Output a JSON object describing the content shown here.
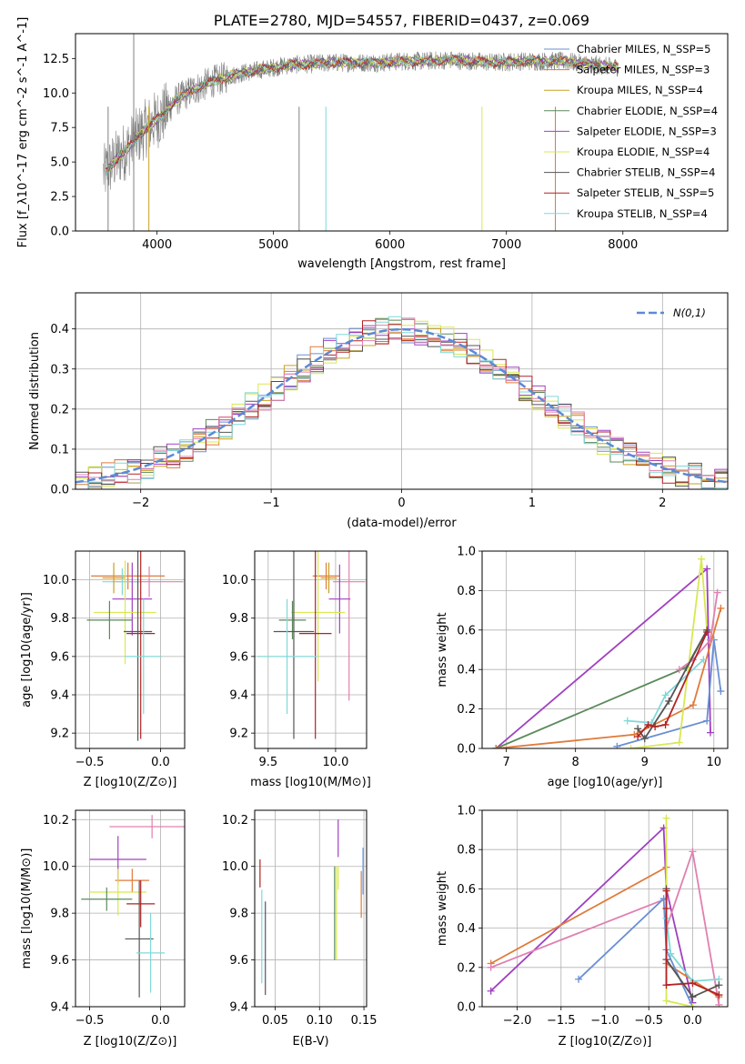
{
  "colors": {
    "chab_miles": "#6a8fd4",
    "salp_miles": "#e07a3a",
    "krou_miles": "#c9a020",
    "chab_elodie": "#5a8a5a",
    "salp_elodie": "#a040c0",
    "krou_elodie": "#d8e850",
    "chab_stelib": "#555555",
    "salp_stelib": "#b22222",
    "krou_stelib": "#80d8d8",
    "pink": "#e080b0",
    "gaussian": "#5b8ad6",
    "spectrum": "#808080"
  },
  "chart_data": [
    {
      "id": "spectrum",
      "type": "line",
      "title": "PLATE=2780, MJD=54557, FIBERID=0437, z=0.069",
      "xlabel": "wavelength [Angstrom, rest frame]",
      "ylabel": "Flux [f_λ10^-17 erg cm^-2 s^-1 A^-1]",
      "xlim": [
        3300,
        8900
      ],
      "ylim": [
        0,
        14.3
      ],
      "xticks": [
        4000,
        5000,
        6000,
        7000,
        8000
      ],
      "yticks": [
        0.0,
        2.5,
        5.0,
        7.5,
        10.0,
        12.5
      ],
      "spectrum_anchors": {
        "x": [
          3550,
          3650,
          3750,
          3850,
          3950,
          4050,
          4150,
          4300,
          4500,
          4700,
          4900,
          5100,
          5300,
          5500,
          5700,
          5900,
          6100,
          6300,
          6500,
          6700,
          6900,
          7100,
          7300,
          7500,
          7700,
          7900
        ],
        "y": [
          4.2,
          5.2,
          6.0,
          7.0,
          7.8,
          8.4,
          9.4,
          10.2,
          10.9,
          11.4,
          11.7,
          12.0,
          12.1,
          12.2,
          12.2,
          12.2,
          12.3,
          12.3,
          12.4,
          12.3,
          12.2,
          12.3,
          12.3,
          12.3,
          12.1,
          11.9
        ]
      },
      "absorption_lines": [
        3580,
        3800,
        3930,
        5220,
        5450,
        6790,
        7420
      ],
      "legend": [
        {
          "name": "Chabrier MILES, N_SSP=5",
          "color_key": "chab_miles"
        },
        {
          "name": "Salpeter MILES, N_SSP=3",
          "color_key": "salp_miles"
        },
        {
          "name": "Kroupa MILES, N_SSP=4",
          "color_key": "krou_miles"
        },
        {
          "name": "Chabrier ELODIE, N_SSP=4",
          "color_key": "chab_elodie"
        },
        {
          "name": "Salpeter ELODIE, N_SSP=3",
          "color_key": "salp_elodie"
        },
        {
          "name": "Kroupa ELODIE, N_SSP=4",
          "color_key": "krou_elodie"
        },
        {
          "name": "Chabrier STELIB, N_SSP=4",
          "color_key": "chab_stelib"
        },
        {
          "name": "Salpeter STELIB, N_SSP=5",
          "color_key": "salp_stelib"
        },
        {
          "name": "Kroupa STELIB, N_SSP=4",
          "color_key": "krou_stelib"
        }
      ]
    },
    {
      "id": "residuals",
      "type": "line",
      "xlabel": "(data-model)/error",
      "ylabel": "Normed distribution",
      "xlim": [
        -2.5,
        2.5
      ],
      "ylim": [
        0,
        0.49
      ],
      "xticks": [
        -2,
        -1,
        0,
        1,
        2
      ],
      "yticks": [
        0.0,
        0.1,
        0.2,
        0.3,
        0.4
      ],
      "legend": "N(0,1)",
      "gaussian": {
        "mean": 0,
        "sigma": 1
      },
      "histogram_bin_width": 0.1,
      "series_color_keys": [
        "chab_miles",
        "salp_miles",
        "krou_miles",
        "chab_elodie",
        "salp_elodie",
        "krou_elodie",
        "chab_stelib",
        "salp_stelib",
        "krou_stelib",
        "pink"
      ]
    },
    {
      "id": "age_vs_Z",
      "type": "scatter",
      "xlabel": "Z [log10(Z/Z⊙)]",
      "ylabel": "age [log10(age/yr)]",
      "xlim": [
        -0.6,
        0.17
      ],
      "ylim": [
        9.12,
        10.15
      ],
      "xticks": [
        -0.5,
        0.0
      ],
      "yticks": [
        9.2,
        9.4,
        9.6,
        9.8,
        10.0
      ],
      "points": [
        {
          "color_key": "salp_miles",
          "x": -0.23,
          "y": 10.02,
          "xerr": 0.26,
          "yerr": 0.07
        },
        {
          "color_key": "pink",
          "x": -0.08,
          "y": 9.99,
          "xerr": 0.24,
          "yerr": 0.08
        },
        {
          "color_key": "krou_stelib",
          "x": -0.27,
          "y": 9.99,
          "xerr": 0.14,
          "yerr": 0.07
        },
        {
          "color_key": "krou_miles",
          "x": -0.33,
          "y": 10.01,
          "xerr": 0.08,
          "yerr": 0.08
        },
        {
          "color_key": "salp_elodie",
          "x": -0.2,
          "y": 9.9,
          "xerr": 0.14,
          "yerr": 0.19
        },
        {
          "color_key": "krou_elodie",
          "x": -0.25,
          "y": 9.83,
          "xerr": 0.22,
          "yerr": 0.27
        },
        {
          "color_key": "chab_elodie",
          "x": -0.36,
          "y": 9.79,
          "xerr": 0.16,
          "yerr": 0.1
        },
        {
          "color_key": "salp_stelib",
          "x": -0.14,
          "y": 9.72,
          "xerr": 0.1,
          "yerr": 0.55
        },
        {
          "color_key": "chab_stelib",
          "x": -0.16,
          "y": 9.73,
          "xerr": 0.1,
          "yerr": 0.57
        },
        {
          "color_key": "krou_stelib",
          "x": -0.12,
          "y": 9.6,
          "xerr": 0.13,
          "yerr": 0.3
        }
      ]
    },
    {
      "id": "age_vs_mass",
      "type": "scatter",
      "xlabel": "mass [log10(M/M⊙)]",
      "ylabel": "",
      "xlim": [
        9.4,
        10.23
      ],
      "ylim": [
        9.12,
        10.15
      ],
      "xticks": [
        9.5,
        10.0
      ],
      "yticks": [
        9.2,
        9.4,
        9.6,
        9.8,
        10.0
      ],
      "points": [
        {
          "color_key": "salp_miles",
          "x": 9.93,
          "y": 10.02,
          "xerr": 0.1,
          "yerr": 0.07
        },
        {
          "color_key": "pink",
          "x": 10.1,
          "y": 9.99,
          "xerr": 0.12,
          "yerr": 0.62
        },
        {
          "color_key": "krou_miles",
          "x": 9.95,
          "y": 10.01,
          "xerr": 0.06,
          "yerr": 0.08
        },
        {
          "color_key": "salp_elodie",
          "x": 10.03,
          "y": 9.9,
          "xerr": 0.08,
          "yerr": 0.18
        },
        {
          "color_key": "krou_elodie",
          "x": 9.87,
          "y": 9.83,
          "xerr": 0.2,
          "yerr": 0.36
        },
        {
          "color_key": "chab_elodie",
          "x": 9.68,
          "y": 9.79,
          "xerr": 0.1,
          "yerr": 0.1
        },
        {
          "color_key": "chab_stelib",
          "x": 9.69,
          "y": 9.73,
          "xerr": 0.15,
          "yerr": 0.56
        },
        {
          "color_key": "salp_stelib",
          "x": 9.85,
          "y": 9.72,
          "xerr": 0.12,
          "yerr": 0.55
        },
        {
          "color_key": "krou_stelib",
          "x": 9.64,
          "y": 9.6,
          "xerr": 0.22,
          "yerr": 0.3
        }
      ]
    },
    {
      "id": "weight_vs_age",
      "type": "line",
      "xlabel": "age [log10(age/yr)]",
      "ylabel": "mass weight",
      "xlim": [
        6.65,
        10.2
      ],
      "ylim": [
        0,
        1.0
      ],
      "xticks": [
        7,
        8,
        9,
        10
      ],
      "yticks": [
        0.0,
        0.2,
        0.4,
        0.6,
        0.8,
        1.0
      ],
      "series": [
        {
          "color_key": "salp_elodie",
          "x": [
            6.85,
            9.9,
            9.95
          ],
          "y": [
            0.0,
            0.91,
            0.08
          ]
        },
        {
          "color_key": "chab_elodie",
          "x": [
            6.85,
            9.6,
            9.9
          ],
          "y": [
            0.0,
            0.41,
            0.6
          ]
        },
        {
          "color_key": "salp_miles",
          "x": [
            6.85,
            8.85,
            9.7,
            10.1
          ],
          "y": [
            0.0,
            0.07,
            0.22,
            0.71
          ]
        },
        {
          "color_key": "chab_miles",
          "x": [
            8.6,
            9.9,
            10.0,
            10.1
          ],
          "y": [
            0.01,
            0.14,
            0.55,
            0.29
          ]
        },
        {
          "color_key": "krou_elodie",
          "x": [
            8.8,
            9.5,
            9.82,
            9.9
          ],
          "y": [
            0.0,
            0.03,
            0.96,
            0.6
          ]
        },
        {
          "color_key": "pink",
          "x": [
            9.5,
            9.7,
            9.95,
            10.05
          ],
          "y": [
            0.4,
            0.45,
            0.55,
            0.79
          ]
        },
        {
          "color_key": "krou_stelib",
          "x": [
            8.75,
            9.1,
            9.3,
            9.85
          ],
          "y": [
            0.14,
            0.13,
            0.27,
            0.45
          ]
        },
        {
          "color_key": "chab_stelib",
          "x": [
            8.9,
            9.0,
            9.35,
            9.9
          ],
          "y": [
            0.1,
            0.05,
            0.24,
            0.6
          ]
        },
        {
          "color_key": "salp_stelib",
          "x": [
            8.9,
            9.05,
            9.15,
            9.3,
            9.9
          ],
          "y": [
            0.06,
            0.12,
            0.11,
            0.12,
            0.59
          ]
        }
      ]
    },
    {
      "id": "mass_vs_Z",
      "type": "scatter",
      "xlabel": "Z [log10(Z/Z⊙)]",
      "ylabel": "mass [log10(M/M⊙)]",
      "xlim": [
        -0.6,
        0.17
      ],
      "ylim": [
        9.4,
        10.24
      ],
      "xticks": [
        -0.5,
        0.0
      ],
      "yticks": [
        9.4,
        9.6,
        9.8,
        10.0,
        10.2
      ],
      "points": [
        {
          "color_key": "pink",
          "x": -0.06,
          "y": 10.17,
          "xerr": 0.3,
          "yerr": 0.05
        },
        {
          "color_key": "salp_elodie",
          "x": -0.3,
          "y": 10.03,
          "xerr": 0.2,
          "yerr": 0.1
        },
        {
          "color_key": "salp_miles",
          "x": -0.2,
          "y": 9.94,
          "xerr": 0.12,
          "yerr": 0.05
        },
        {
          "color_key": "krou_elodie",
          "x": -0.3,
          "y": 9.89,
          "xerr": 0.2,
          "yerr": 0.1
        },
        {
          "color_key": "chab_elodie",
          "x": -0.38,
          "y": 9.86,
          "xerr": 0.18,
          "yerr": 0.05
        },
        {
          "color_key": "salp_stelib",
          "x": -0.14,
          "y": 9.84,
          "xerr": 0.1,
          "yerr": 0.1
        },
        {
          "color_key": "chab_stelib",
          "x": -0.15,
          "y": 9.69,
          "xerr": 0.1,
          "yerr": 0.25
        },
        {
          "color_key": "krou_stelib",
          "x": -0.07,
          "y": 9.63,
          "xerr": 0.1,
          "yerr": 0.17
        }
      ]
    },
    {
      "id": "mass_vs_ebv",
      "type": "scatter",
      "xlabel": "E(B-V)",
      "ylabel": "",
      "xlim": [
        0.027,
        0.153
      ],
      "ylim": [
        9.4,
        10.24
      ],
      "xticks": [
        0.05,
        0.1,
        0.15
      ],
      "yticks": [
        9.4,
        9.6,
        9.8,
        10.0,
        10.2
      ],
      "points": [
        {
          "color_key": "salp_stelib",
          "x": 0.033,
          "y": 9.97,
          "yerr": 0.06
        },
        {
          "color_key": "krou_stelib",
          "x": 0.035,
          "y": 9.7,
          "yerr": 0.2
        },
        {
          "color_key": "chab_stelib",
          "x": 0.039,
          "y": 9.65,
          "yerr": 0.2
        },
        {
          "color_key": "salp_elodie",
          "x": 0.121,
          "y": 10.12,
          "yerr": 0.08
        },
        {
          "color_key": "krou_elodie",
          "x": 0.121,
          "y": 9.95,
          "yerr": 0.05
        },
        {
          "color_key": "krou_elodie",
          "x": 0.119,
          "y": 9.8,
          "yerr": 0.2
        },
        {
          "color_key": "chab_elodie",
          "x": 0.117,
          "y": 9.8,
          "yerr": 0.2
        },
        {
          "color_key": "salp_miles",
          "x": 0.147,
          "y": 9.88,
          "yerr": 0.1
        },
        {
          "color_key": "chab_miles",
          "x": 0.149,
          "y": 9.98,
          "yerr": 0.1
        }
      ]
    },
    {
      "id": "weight_vs_Z",
      "type": "line",
      "xlabel": "Z [log10(Z/Z⊙)]",
      "ylabel": "mass weight",
      "xlim": [
        -2.4,
        0.4
      ],
      "ylim": [
        0,
        1.0
      ],
      "xticks": [
        -2.0,
        -1.5,
        -1.0,
        -0.5,
        0.0
      ],
      "yticks": [
        0.0,
        0.2,
        0.4,
        0.6,
        0.8,
        1.0
      ],
      "series": [
        {
          "color_key": "salp_elodie",
          "x": [
            -2.3,
            -0.33,
            -0.3,
            0.0
          ],
          "y": [
            0.08,
            0.91,
            0.6,
            0.02
          ]
        },
        {
          "color_key": "salp_miles",
          "x": [
            -2.3,
            -0.3,
            -0.3,
            0.3
          ],
          "y": [
            0.22,
            0.71,
            0.22,
            0.05
          ]
        },
        {
          "color_key": "pink",
          "x": [
            -2.3,
            -0.3,
            -0.3,
            0.0,
            0.3
          ],
          "y": [
            0.2,
            0.55,
            0.4,
            0.79,
            0.01
          ]
        },
        {
          "color_key": "chab_miles",
          "x": [
            -1.3,
            -0.33,
            -0.3,
            0.0
          ],
          "y": [
            0.14,
            0.55,
            0.29,
            0.0
          ]
        },
        {
          "color_key": "krou_elodie",
          "x": [
            -0.3,
            -0.3,
            -0.3,
            0.0
          ],
          "y": [
            0.96,
            0.6,
            0.03,
            0.0
          ]
        },
        {
          "color_key": "krou_stelib",
          "x": [
            -0.3,
            -0.25,
            0.0,
            0.3
          ],
          "y": [
            0.45,
            0.27,
            0.13,
            0.14
          ]
        },
        {
          "color_key": "chab_stelib",
          "x": [
            -0.3,
            -0.3,
            0.0,
            0.3
          ],
          "y": [
            0.6,
            0.24,
            0.05,
            0.11
          ]
        },
        {
          "color_key": "salp_stelib",
          "x": [
            -0.3,
            -0.3,
            -0.3,
            0.0,
            0.3
          ],
          "y": [
            0.59,
            0.5,
            0.11,
            0.12,
            0.06
          ]
        }
      ]
    }
  ]
}
